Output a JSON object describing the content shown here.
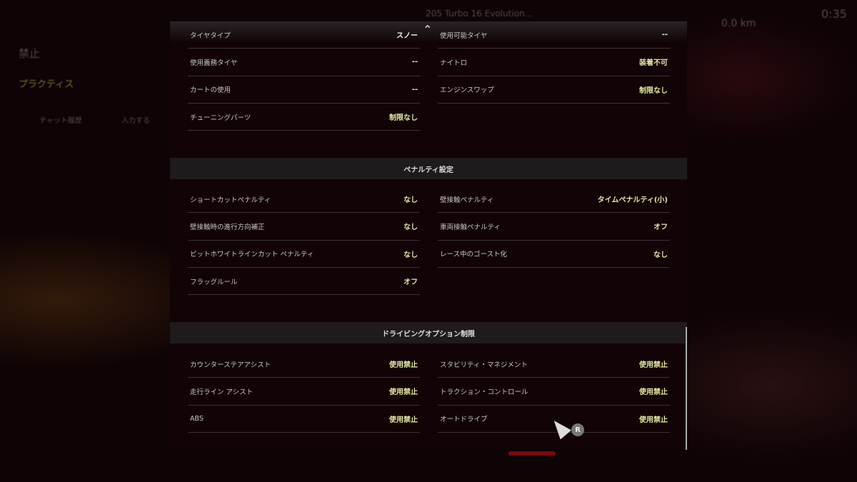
{
  "background": {
    "title": "禁止",
    "tab": "プラクティス",
    "car": "205 Turbo 16 Evolution...",
    "distance": "0.0 km",
    "time": "0:35",
    "chat": "チャット履歴",
    "input": "入力する"
  },
  "panel": {
    "top_left": [
      {
        "label": "タイヤタイプ",
        "value": "スノー"
      },
      {
        "label": "使用義務タイヤ",
        "value": "--"
      },
      {
        "label": "カートの使用",
        "value": "--"
      },
      {
        "label": "チューニングパーツ",
        "value": "制限なし"
      }
    ],
    "top_right": [
      {
        "label": "使用可能タイヤ",
        "value": "--"
      },
      {
        "label": "ナイトロ",
        "value": "装着不可"
      },
      {
        "label": "エンジンスワップ",
        "value": "制限なし"
      }
    ],
    "penalty": {
      "title": "ペナルティ設定",
      "left": [
        {
          "label": "ショートカットペナルティ",
          "value": "なし"
        },
        {
          "label": "壁接触時の進行方向補正",
          "value": "なし"
        },
        {
          "label": "ピットホワイトラインカット ペナルティ",
          "value": "なし"
        },
        {
          "label": "フラッグルール",
          "value": "オフ"
        }
      ],
      "right": [
        {
          "label": "壁接触ペナルティ",
          "value": "タイムペナルティ(小)"
        },
        {
          "label": "車両接触ペナルティ",
          "value": "オフ"
        },
        {
          "label": "レース中のゴースト化",
          "value": "なし"
        }
      ]
    },
    "driving": {
      "title": "ドライビングオプション制限",
      "left": [
        {
          "label": "カウンターステアアシスト",
          "value": "使用禁止"
        },
        {
          "label": "走行ライン アシスト",
          "value": "使用禁止"
        },
        {
          "label": "ABS",
          "value": "使用禁止"
        }
      ],
      "right": [
        {
          "label": "スタビリティ・マネジメント",
          "value": "使用禁止"
        },
        {
          "label": "トラクション・コントロール",
          "value": "使用禁止"
        },
        {
          "label": "オートドライブ",
          "value": "使用禁止"
        }
      ]
    }
  },
  "controls": {
    "scroll_button": "R"
  },
  "colors": {
    "value_highlight": "#e6eaa0",
    "panel": "#110306",
    "section_header": "#1f1b1d"
  }
}
